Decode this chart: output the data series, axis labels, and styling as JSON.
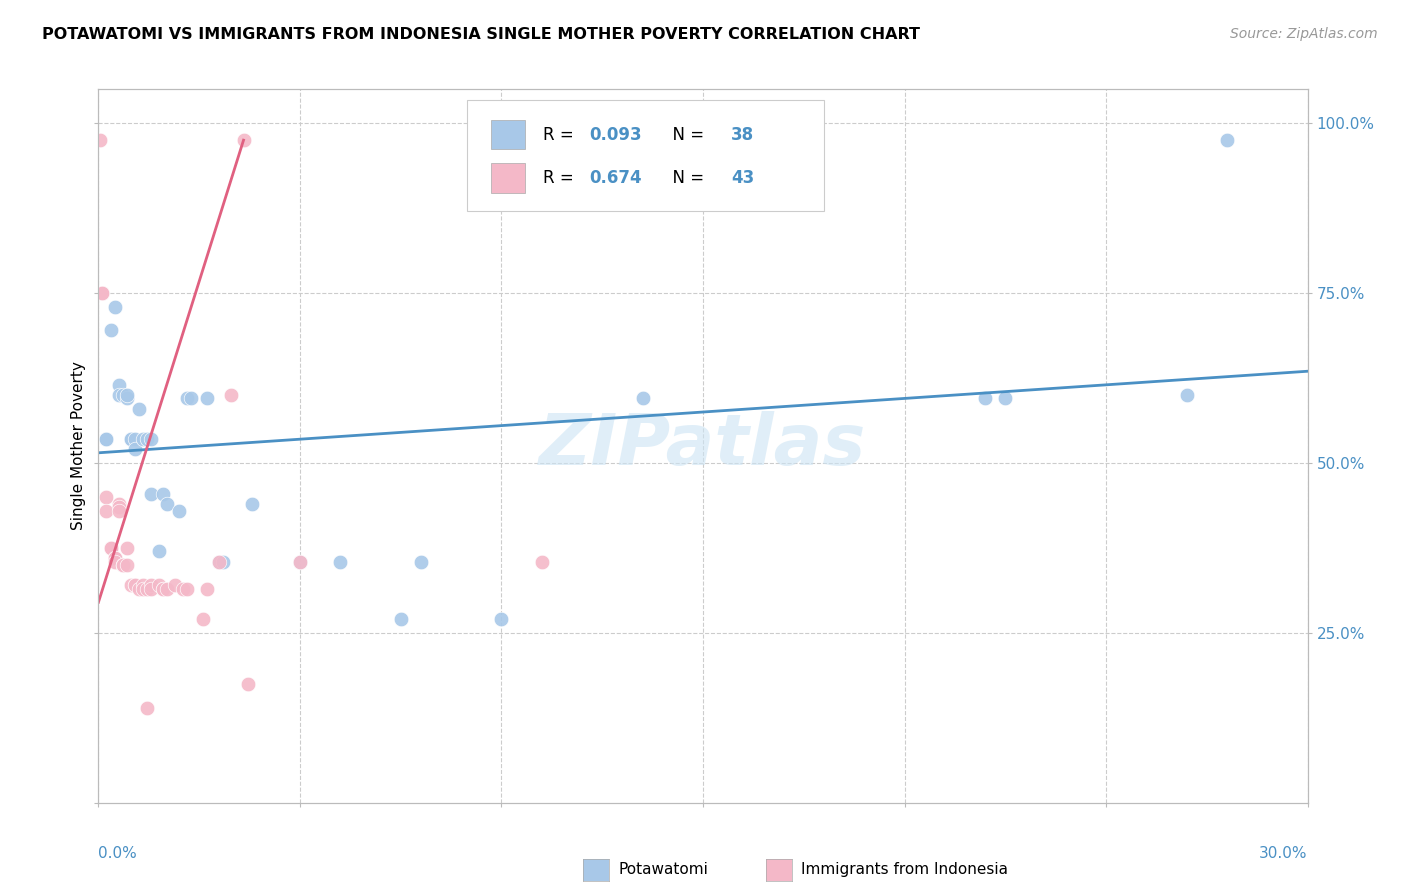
{
  "title": "POTAWATOMI VS IMMIGRANTS FROM INDONESIA SINGLE MOTHER POVERTY CORRELATION CHART",
  "source": "Source: ZipAtlas.com",
  "ylabel": "Single Mother Poverty",
  "r_blue": 0.093,
  "n_blue": 38,
  "r_pink": 0.674,
  "n_pink": 43,
  "blue_color": "#a8c8e8",
  "pink_color": "#f4b8c8",
  "blue_line_color": "#4a90c4",
  "pink_line_color": "#e06080",
  "watermark": "ZIPatlas",
  "xlim": [
    0.0,
    0.3
  ],
  "ylim": [
    0.0,
    1.05
  ],
  "blue_dots": [
    [
      0.002,
      0.535
    ],
    [
      0.002,
      0.535
    ],
    [
      0.003,
      0.695
    ],
    [
      0.004,
      0.73
    ],
    [
      0.005,
      0.615
    ],
    [
      0.005,
      0.6
    ],
    [
      0.006,
      0.6
    ],
    [
      0.007,
      0.595
    ],
    [
      0.007,
      0.6
    ],
    [
      0.008,
      0.535
    ],
    [
      0.008,
      0.535
    ],
    [
      0.009,
      0.535
    ],
    [
      0.009,
      0.52
    ],
    [
      0.01,
      0.58
    ],
    [
      0.011,
      0.535
    ],
    [
      0.012,
      0.535
    ],
    [
      0.013,
      0.535
    ],
    [
      0.013,
      0.455
    ],
    [
      0.015,
      0.37
    ],
    [
      0.016,
      0.455
    ],
    [
      0.017,
      0.44
    ],
    [
      0.02,
      0.43
    ],
    [
      0.022,
      0.595
    ],
    [
      0.023,
      0.595
    ],
    [
      0.027,
      0.595
    ],
    [
      0.03,
      0.355
    ],
    [
      0.031,
      0.355
    ],
    [
      0.038,
      0.44
    ],
    [
      0.05,
      0.355
    ],
    [
      0.06,
      0.355
    ],
    [
      0.075,
      0.27
    ],
    [
      0.08,
      0.355
    ],
    [
      0.1,
      0.27
    ],
    [
      0.135,
      0.595
    ],
    [
      0.22,
      0.595
    ],
    [
      0.225,
      0.595
    ],
    [
      0.27,
      0.6
    ],
    [
      0.28,
      0.975
    ]
  ],
  "pink_dots": [
    [
      0.0005,
      0.975
    ],
    [
      0.001,
      0.75
    ],
    [
      0.001,
      0.75
    ],
    [
      0.002,
      0.45
    ],
    [
      0.002,
      0.43
    ],
    [
      0.003,
      0.375
    ],
    [
      0.003,
      0.375
    ],
    [
      0.004,
      0.36
    ],
    [
      0.004,
      0.36
    ],
    [
      0.004,
      0.355
    ],
    [
      0.005,
      0.44
    ],
    [
      0.005,
      0.435
    ],
    [
      0.005,
      0.43
    ],
    [
      0.006,
      0.35
    ],
    [
      0.006,
      0.35
    ],
    [
      0.006,
      0.35
    ],
    [
      0.007,
      0.375
    ],
    [
      0.007,
      0.35
    ],
    [
      0.008,
      0.32
    ],
    [
      0.009,
      0.32
    ],
    [
      0.009,
      0.32
    ],
    [
      0.01,
      0.315
    ],
    [
      0.011,
      0.32
    ],
    [
      0.011,
      0.315
    ],
    [
      0.012,
      0.315
    ],
    [
      0.012,
      0.14
    ],
    [
      0.013,
      0.32
    ],
    [
      0.013,
      0.315
    ],
    [
      0.015,
      0.32
    ],
    [
      0.016,
      0.315
    ],
    [
      0.016,
      0.315
    ],
    [
      0.017,
      0.315
    ],
    [
      0.019,
      0.32
    ],
    [
      0.021,
      0.315
    ],
    [
      0.022,
      0.315
    ],
    [
      0.026,
      0.27
    ],
    [
      0.027,
      0.315
    ],
    [
      0.03,
      0.355
    ],
    [
      0.033,
      0.6
    ],
    [
      0.036,
      0.975
    ],
    [
      0.037,
      0.175
    ],
    [
      0.05,
      0.355
    ],
    [
      0.11,
      0.355
    ]
  ],
  "blue_trend_x": [
    0.0,
    0.3
  ],
  "blue_trend_y": [
    0.515,
    0.635
  ],
  "pink_trend_x": [
    0.0,
    0.036
  ],
  "pink_trend_y": [
    0.295,
    0.975
  ]
}
